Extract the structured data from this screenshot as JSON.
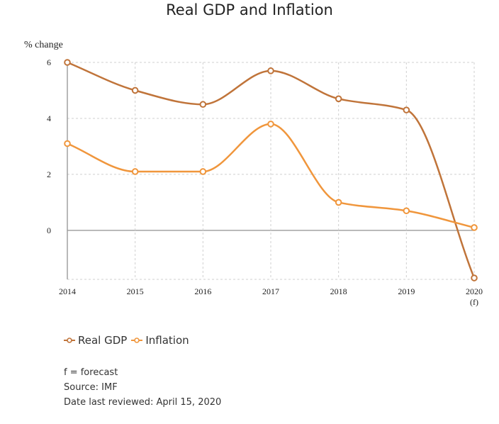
{
  "chart_data": {
    "type": "line",
    "title": "Real GDP and Inflation",
    "ylabel": "% change",
    "xlabel": "",
    "categories": [
      "2014",
      "2015",
      "2016",
      "2017",
      "2018",
      "2019",
      "2020"
    ],
    "category_notes": [
      "",
      "",
      "",
      "",
      "",
      "",
      "(f)"
    ],
    "yticks": [
      0,
      2,
      4,
      6
    ],
    "ylim": [
      -1.75,
      6
    ],
    "grid": true,
    "legend_position": "bottom-left",
    "series": [
      {
        "name": "Real GDP",
        "values": [
          6.0,
          5.0,
          4.5,
          5.7,
          4.7,
          4.3,
          -1.7
        ],
        "color": "#c0743a"
      },
      {
        "name": "Inflation",
        "values": [
          3.1,
          2.1,
          2.1,
          3.8,
          1.0,
          0.7,
          0.1
        ],
        "color": "#f0963c"
      }
    ]
  },
  "notes": {
    "forecast": "f = forecast",
    "source": "Source: IMF",
    "reviewed": "Date last reviewed: April 15, 2020"
  }
}
